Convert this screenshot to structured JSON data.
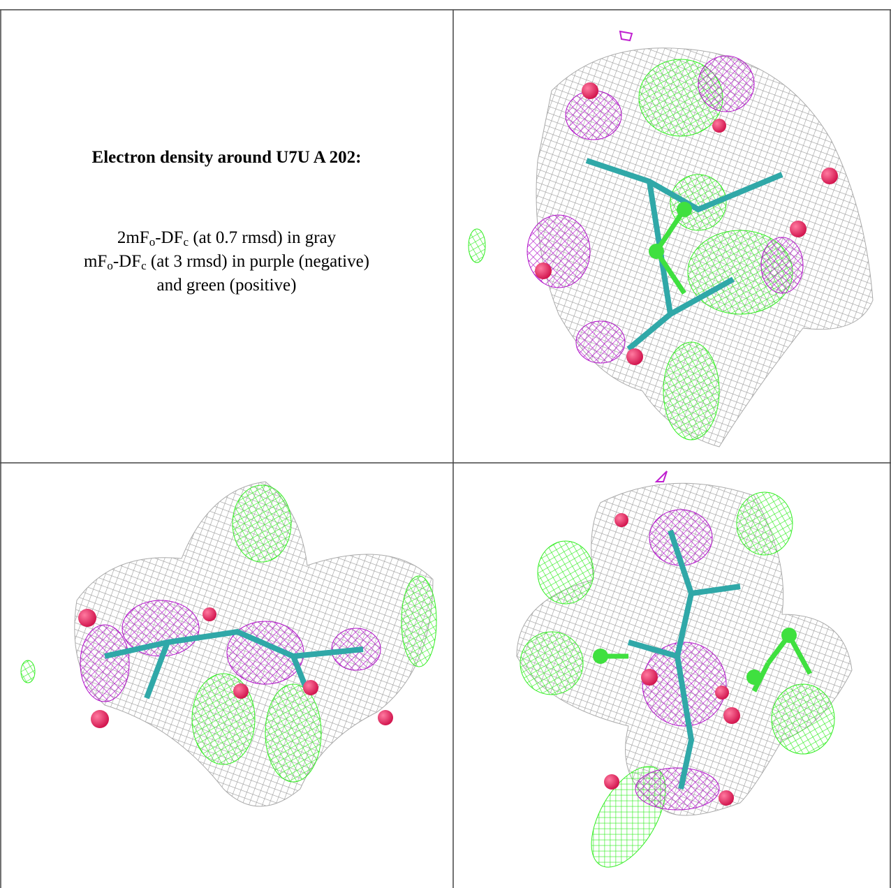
{
  "title": "Electron density around U7U A 202:",
  "legend": [
    [
      "2mF",
      "o",
      "-DF",
      "c",
      " (at 0.7 rmsd) in gray"
    ],
    [
      "mF",
      "o",
      "-DF",
      "c",
      " (at 3 rmsd) in purple (negative)"
    ],
    [
      "and green (positive)"
    ]
  ]
}
